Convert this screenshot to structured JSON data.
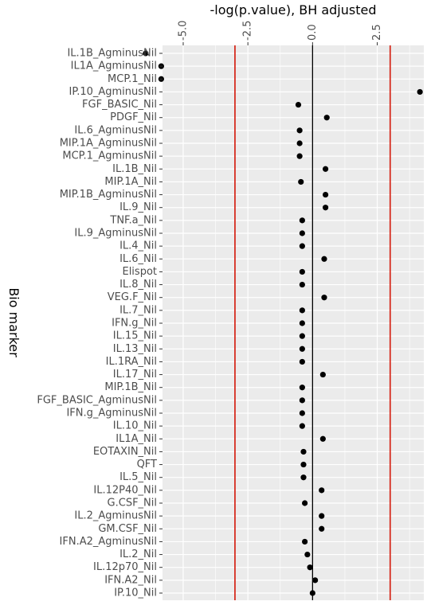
{
  "chart_data": {
    "type": "scatter",
    "title": "",
    "xlabel": "-log(p.value), BH adjusted",
    "ylabel": "Bio marker",
    "x_axis_position": "top",
    "xlim": [
      -5.8,
      4.3
    ],
    "x_ticks": [
      {
        "value": -5,
        "label": "-5.0"
      },
      {
        "value": -2.5,
        "label": "-2.5"
      },
      {
        "value": 0,
        "label": "0.0"
      },
      {
        "value": 2.5,
        "label": "2.5"
      }
    ],
    "reference_lines": [
      {
        "x": -3,
        "color": "#d62d20"
      },
      {
        "x": 0,
        "color": "#000000"
      },
      {
        "x": 3,
        "color": "#d62d20"
      }
    ],
    "grid": true,
    "panel_background": "#ebebeb",
    "point_color": "#000000",
    "categories": [
      "IL.1B_AgminusNil",
      "IL1A_AgminusNil",
      "MCP.1_Nil",
      "IP.10_AgminusNil",
      "FGF_BASIC_Nil",
      "PDGF_Nil",
      "IL.6_AgminusNil",
      "MIP.1A_AgminusNil",
      "MCP.1_AgminusNil",
      "IL.1B_Nil",
      "MIP.1A_Nil",
      "MIP.1B_AgminusNil",
      "IL.9_Nil",
      "TNF.a_Nil",
      "IL.9_AgminusNil",
      "IL.4_Nil",
      "IL.6_Nil",
      "Elispot",
      "IL.8_Nil",
      "VEG.F_Nil",
      "IL.7_Nil",
      "IFN.g_Nil",
      "IL.15_Nil",
      "IL.13_Nil",
      "IL.1RA_Nil",
      "IL.17_Nil",
      "MIP.1B_Nil",
      "FGF_BASIC_AgminusNil",
      "IFN.g_AgminusNil",
      "IL.10_Nil",
      "IL1A_Nil",
      "EOTAXIN_Nil",
      "QFT",
      "IL.5_Nil",
      "IL.12P40_Nil",
      "G.CSF_Nil",
      "IL.2_AgminusNil",
      "GM.CSF_Nil",
      "IFN.A2_AgminusNil",
      "IL.2_Nil",
      "IL.12p70_Nil",
      "IFN.A2_Nil",
      "IP.10_Nil"
    ],
    "values": [
      -6.45,
      -5.85,
      -5.85,
      4.15,
      -0.55,
      0.55,
      -0.5,
      -0.5,
      -0.5,
      0.5,
      -0.45,
      0.5,
      0.5,
      -0.4,
      -0.4,
      -0.4,
      0.45,
      -0.4,
      -0.4,
      0.45,
      -0.4,
      -0.4,
      -0.4,
      -0.4,
      -0.4,
      0.4,
      -0.4,
      -0.4,
      -0.4,
      -0.4,
      0.4,
      -0.35,
      -0.35,
      -0.35,
      0.35,
      -0.3,
      0.35,
      0.35,
      -0.3,
      -0.2,
      -0.1,
      0.1,
      0.0
    ]
  }
}
